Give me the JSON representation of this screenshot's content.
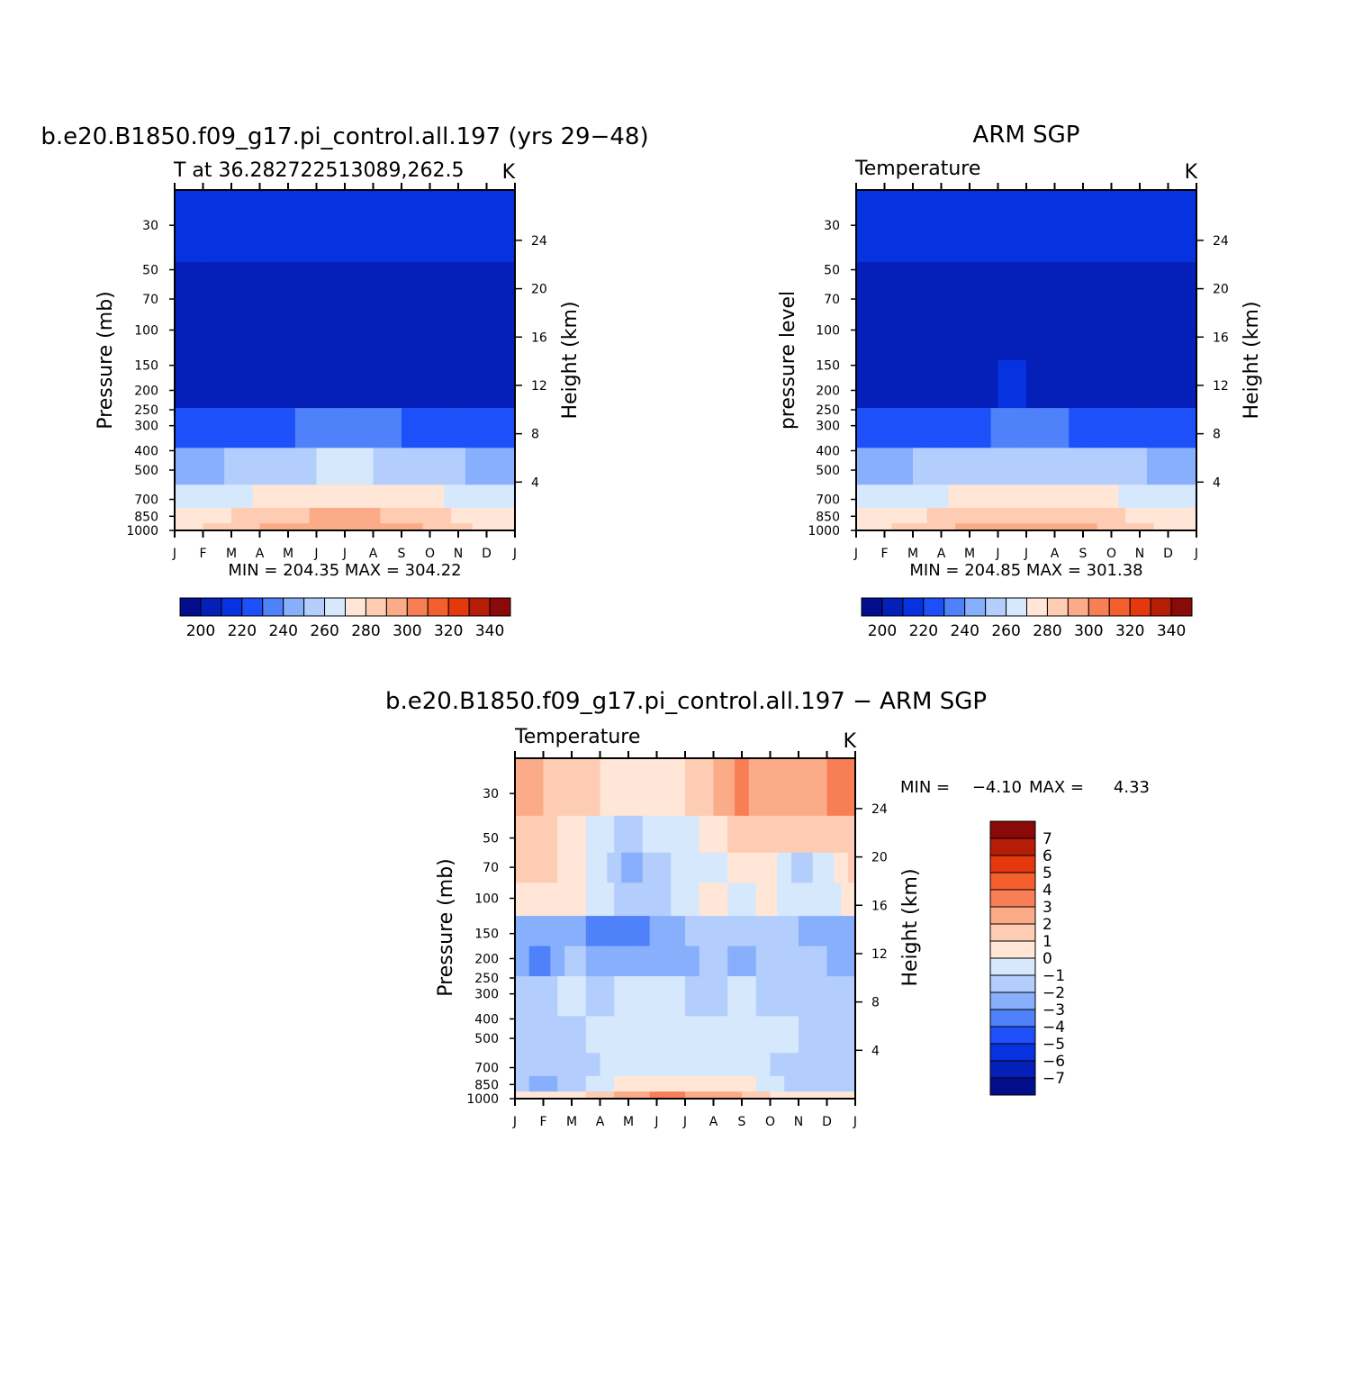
{
  "palette": {
    "contour": [
      "#FFFFFF",
      "#D6E8FC",
      "#B3CDFC",
      "#87AFFB",
      "#4F81FA",
      "#1E50FA",
      "#0632E0",
      "#0322B8"
    ],
    "levels_cold": [
      "#FFE6D6",
      "#FDCCB2",
      "#FBAB88",
      "#F87E56",
      "#F55F2E",
      "#F03E0C"
    ]
  },
  "panels": {
    "model": {
      "title": "b.e20.B1850.f09_g17.pi_control.all.197 (yrs 29−48)",
      "subtitle": "T at 36.282722513089,262.5",
      "units": "K",
      "ylabel": "Pressure (mb)",
      "ylabel_right": "Height (km)",
      "minmax": "MIN = 204.35 MAX = 304.22"
    },
    "obs": {
      "title": "ARM SGP",
      "subtitle": "Temperature",
      "units": "K",
      "ylabel": "pressure level",
      "ylabel_right": "Height (km)",
      "minmax": "MIN = 204.85 MAX = 301.38"
    },
    "diff": {
      "title": "b.e20.B1850.f09_g17.pi_control.all.197 − ARM SGP",
      "subtitle": "Temperature",
      "units": "K",
      "ylabel": "Pressure (mb)",
      "ylabel_right": "Height (km)",
      "minmax_min": "MIN =",
      "minmax_min_val": "−4.10",
      "minmax_max": "MAX =",
      "minmax_max_val": "4.33"
    }
  },
  "chart_data": [
    {
      "type": "heatmap",
      "title": "b.e20.B1850.f09_g17.pi_control.all.197 (yrs 29−48)",
      "subtitle": "T at 36.282722513089,262.5",
      "units": "K",
      "x": [
        "J",
        "F",
        "M",
        "A",
        "M",
        "J",
        "J",
        "A",
        "S",
        "O",
        "N",
        "D",
        "J"
      ],
      "pressure_ticks": [
        30,
        50,
        70,
        100,
        150,
        200,
        250,
        300,
        400,
        500,
        700,
        850,
        1000
      ],
      "height_ticks": [
        4,
        8,
        12,
        16,
        20,
        24
      ],
      "xlabel": "",
      "ylabel": "Pressure (mb)",
      "ylabel_right": "Height (km)",
      "min": 204.35,
      "max": 304.22,
      "colorbar": {
        "ticks": [
          200,
          220,
          240,
          260,
          280,
          300,
          320,
          340
        ]
      },
      "contour_levels": [
        195,
        205,
        215,
        225,
        235,
        245,
        255,
        265,
        275,
        285,
        295,
        305,
        315,
        325,
        335,
        345
      ],
      "values_K_by_level": {
        "1000": [
          282,
          285,
          290,
          295,
          300,
          303,
          304,
          303,
          299,
          294,
          288,
          283,
          282
        ],
        "850": [
          279,
          281,
          285,
          289,
          293,
          296,
          297,
          296,
          293,
          289,
          284,
          280,
          279
        ],
        "700": [
          268,
          269,
          272,
          276,
          279,
          282,
          283,
          282,
          280,
          277,
          273,
          269,
          268
        ],
        "500": [
          252,
          253,
          256,
          259,
          262,
          265,
          266,
          265,
          263,
          260,
          256,
          253,
          252
        ],
        "300": [
          225,
          226,
          228,
          231,
          234,
          237,
          238,
          237,
          235,
          232,
          229,
          226,
          225
        ],
        "200": [
          214,
          214,
          214,
          214,
          214,
          214,
          215,
          214,
          214,
          214,
          214,
          214,
          214
        ],
        "100": [
          212,
          212,
          212,
          211,
          208,
          208,
          208,
          208,
          208,
          208,
          209,
          211,
          212
        ],
        "70": [
          212,
          212,
          211,
          210,
          208,
          209,
          209,
          209,
          209,
          209,
          209,
          210,
          212
        ],
        "30": [
          216,
          216,
          216,
          216,
          217,
          218,
          219,
          219,
          218,
          217,
          216,
          216,
          216
        ]
      }
    },
    {
      "type": "heatmap",
      "title": "ARM SGP",
      "subtitle": "Temperature",
      "units": "K",
      "x": [
        "J",
        "F",
        "M",
        "A",
        "M",
        "J",
        "J",
        "A",
        "S",
        "O",
        "N",
        "D",
        "J"
      ],
      "pressure_ticks": [
        30,
        50,
        70,
        100,
        150,
        200,
        250,
        300,
        400,
        500,
        700,
        850,
        1000
      ],
      "height_ticks": [
        4,
        8,
        12,
        16,
        20,
        24
      ],
      "xlabel": "",
      "ylabel": "pressure level",
      "ylabel_right": "Height (km)",
      "min": 204.85,
      "max": 301.38,
      "colorbar": {
        "ticks": [
          200,
          220,
          240,
          260,
          280,
          300,
          320,
          340
        ]
      },
      "contour_levels": [
        195,
        205,
        215,
        225,
        235,
        245,
        255,
        265,
        275,
        285,
        295,
        305,
        315,
        325,
        335,
        345
      ],
      "values_K_by_level": {
        "1000": [
          282,
          284,
          288,
          293,
          297,
          300,
          301,
          300,
          297,
          292,
          287,
          283,
          282
        ],
        "850": [
          278,
          280,
          283,
          287,
          291,
          294,
          295,
          294,
          292,
          288,
          283,
          279,
          278
        ],
        "700": [
          268,
          269,
          271,
          274,
          278,
          281,
          282,
          281,
          279,
          276,
          272,
          269,
          268
        ],
        "500": [
          252,
          253,
          255,
          258,
          261,
          264,
          265,
          264,
          262,
          259,
          256,
          253,
          252
        ],
        "300": [
          226,
          226,
          228,
          230,
          233,
          236,
          237,
          236,
          234,
          231,
          228,
          226,
          226
        ],
        "200": [
          214,
          214,
          214,
          214,
          214,
          215,
          215,
          214,
          214,
          214,
          214,
          214,
          214
        ],
        "100": [
          210,
          212,
          213,
          211,
          209,
          207,
          207,
          207,
          208,
          209,
          211,
          212,
          210
        ],
        "70": [
          208,
          209,
          207,
          209,
          209,
          208,
          208,
          208,
          209,
          209,
          208,
          208,
          208
        ],
        "30": [
          216,
          216,
          216,
          216,
          217,
          218,
          219,
          218,
          217,
          216,
          216,
          216,
          216
        ]
      }
    },
    {
      "type": "heatmap",
      "title": "b.e20.B1850.f09_g17.pi_control.all.197 − ARM SGP",
      "subtitle": "Temperature",
      "units": "K",
      "x": [
        "J",
        "F",
        "M",
        "A",
        "M",
        "J",
        "J",
        "A",
        "S",
        "O",
        "N",
        "D",
        "J"
      ],
      "pressure_ticks": [
        30,
        50,
        70,
        100,
        150,
        200,
        250,
        300,
        400,
        500,
        700,
        850,
        1000
      ],
      "height_ticks": [
        4,
        8,
        12,
        16,
        20,
        24
      ],
      "xlabel": "",
      "ylabel": "Pressure (mb)",
      "ylabel_right": "Height (km)",
      "min": -4.1,
      "max": 4.33,
      "colorbar": {
        "ticks": [
          7,
          6,
          5,
          4,
          3,
          2,
          1,
          0,
          -1,
          -2,
          -3,
          -4,
          -5,
          -6,
          -7
        ]
      },
      "contour_levels": [
        -8,
        -7,
        -6,
        -5,
        -4,
        -3,
        -2,
        -1,
        0,
        1,
        2,
        3,
        4,
        5,
        6,
        7,
        8
      ],
      "values_K_by_level": {
        "1000": [
          0.5,
          0.5,
          0.5,
          1.5,
          2.5,
          3.2,
          3.0,
          2.6,
          2.0,
          1.0,
          0.5,
          0.2,
          0.5
        ],
        "850": [
          -1.5,
          -2.5,
          -1.5,
          -0.5,
          0.5,
          1.0,
          0.8,
          0.5,
          0.3,
          -0.5,
          -1.5,
          -2.0,
          -1.5
        ],
        "700": [
          -1.5,
          -2.0,
          -1.5,
          -1.0,
          -0.5,
          -0.5,
          -0.5,
          -0.5,
          -0.5,
          -1.0,
          -1.5,
          -2.0,
          -1.5
        ],
        "500": [
          -1.5,
          -1.5,
          -1.5,
          -0.5,
          -0.5,
          -0.5,
          -0.5,
          -1.0,
          -0.5,
          -1.0,
          -1.0,
          -1.5,
          -1.5
        ],
        "300": [
          -1.5,
          -1.5,
          -0.5,
          -1.5,
          -0.5,
          -0.5,
          -1.0,
          -1.5,
          -0.5,
          -1.5,
          -1.0,
          -1.5,
          -1.5
        ],
        "200": [
          -2.5,
          -3.5,
          -1.5,
          -2.5,
          -2.5,
          -2.0,
          -2.5,
          -1.5,
          -2.5,
          -1.5,
          -1.5,
          -2.0,
          -2.5
        ],
        "150": [
          -2.5,
          -2.5,
          -2.5,
          -3.5,
          -4.0,
          -2.5,
          -2.0,
          -1.5,
          -1.5,
          -1.5,
          -2.0,
          -2.5,
          -2.5
        ],
        "100": [
          0.5,
          0.5,
          0.5,
          -0.5,
          -1.5,
          -1.5,
          -0.5,
          0.5,
          -0.5,
          0.5,
          -1.0,
          -0.5,
          0.5
        ],
        "70": [
          1.5,
          1.5,
          0.5,
          -0.5,
          -2.5,
          -1.5,
          -0.5,
          -0.5,
          0.5,
          0.5,
          -1.5,
          -0.5,
          1.5
        ],
        "50": [
          1.5,
          1.5,
          0.5,
          -0.5,
          -1.5,
          -0.5,
          -0.5,
          0.5,
          1.5,
          2.0,
          1.0,
          1.5,
          1.5
        ],
        "30": [
          3.0,
          2.0,
          1.5,
          1.0,
          0.5,
          0.5,
          1.0,
          2.0,
          3.5,
          2.0,
          2.0,
          3.0,
          3.0
        ]
      }
    }
  ]
}
